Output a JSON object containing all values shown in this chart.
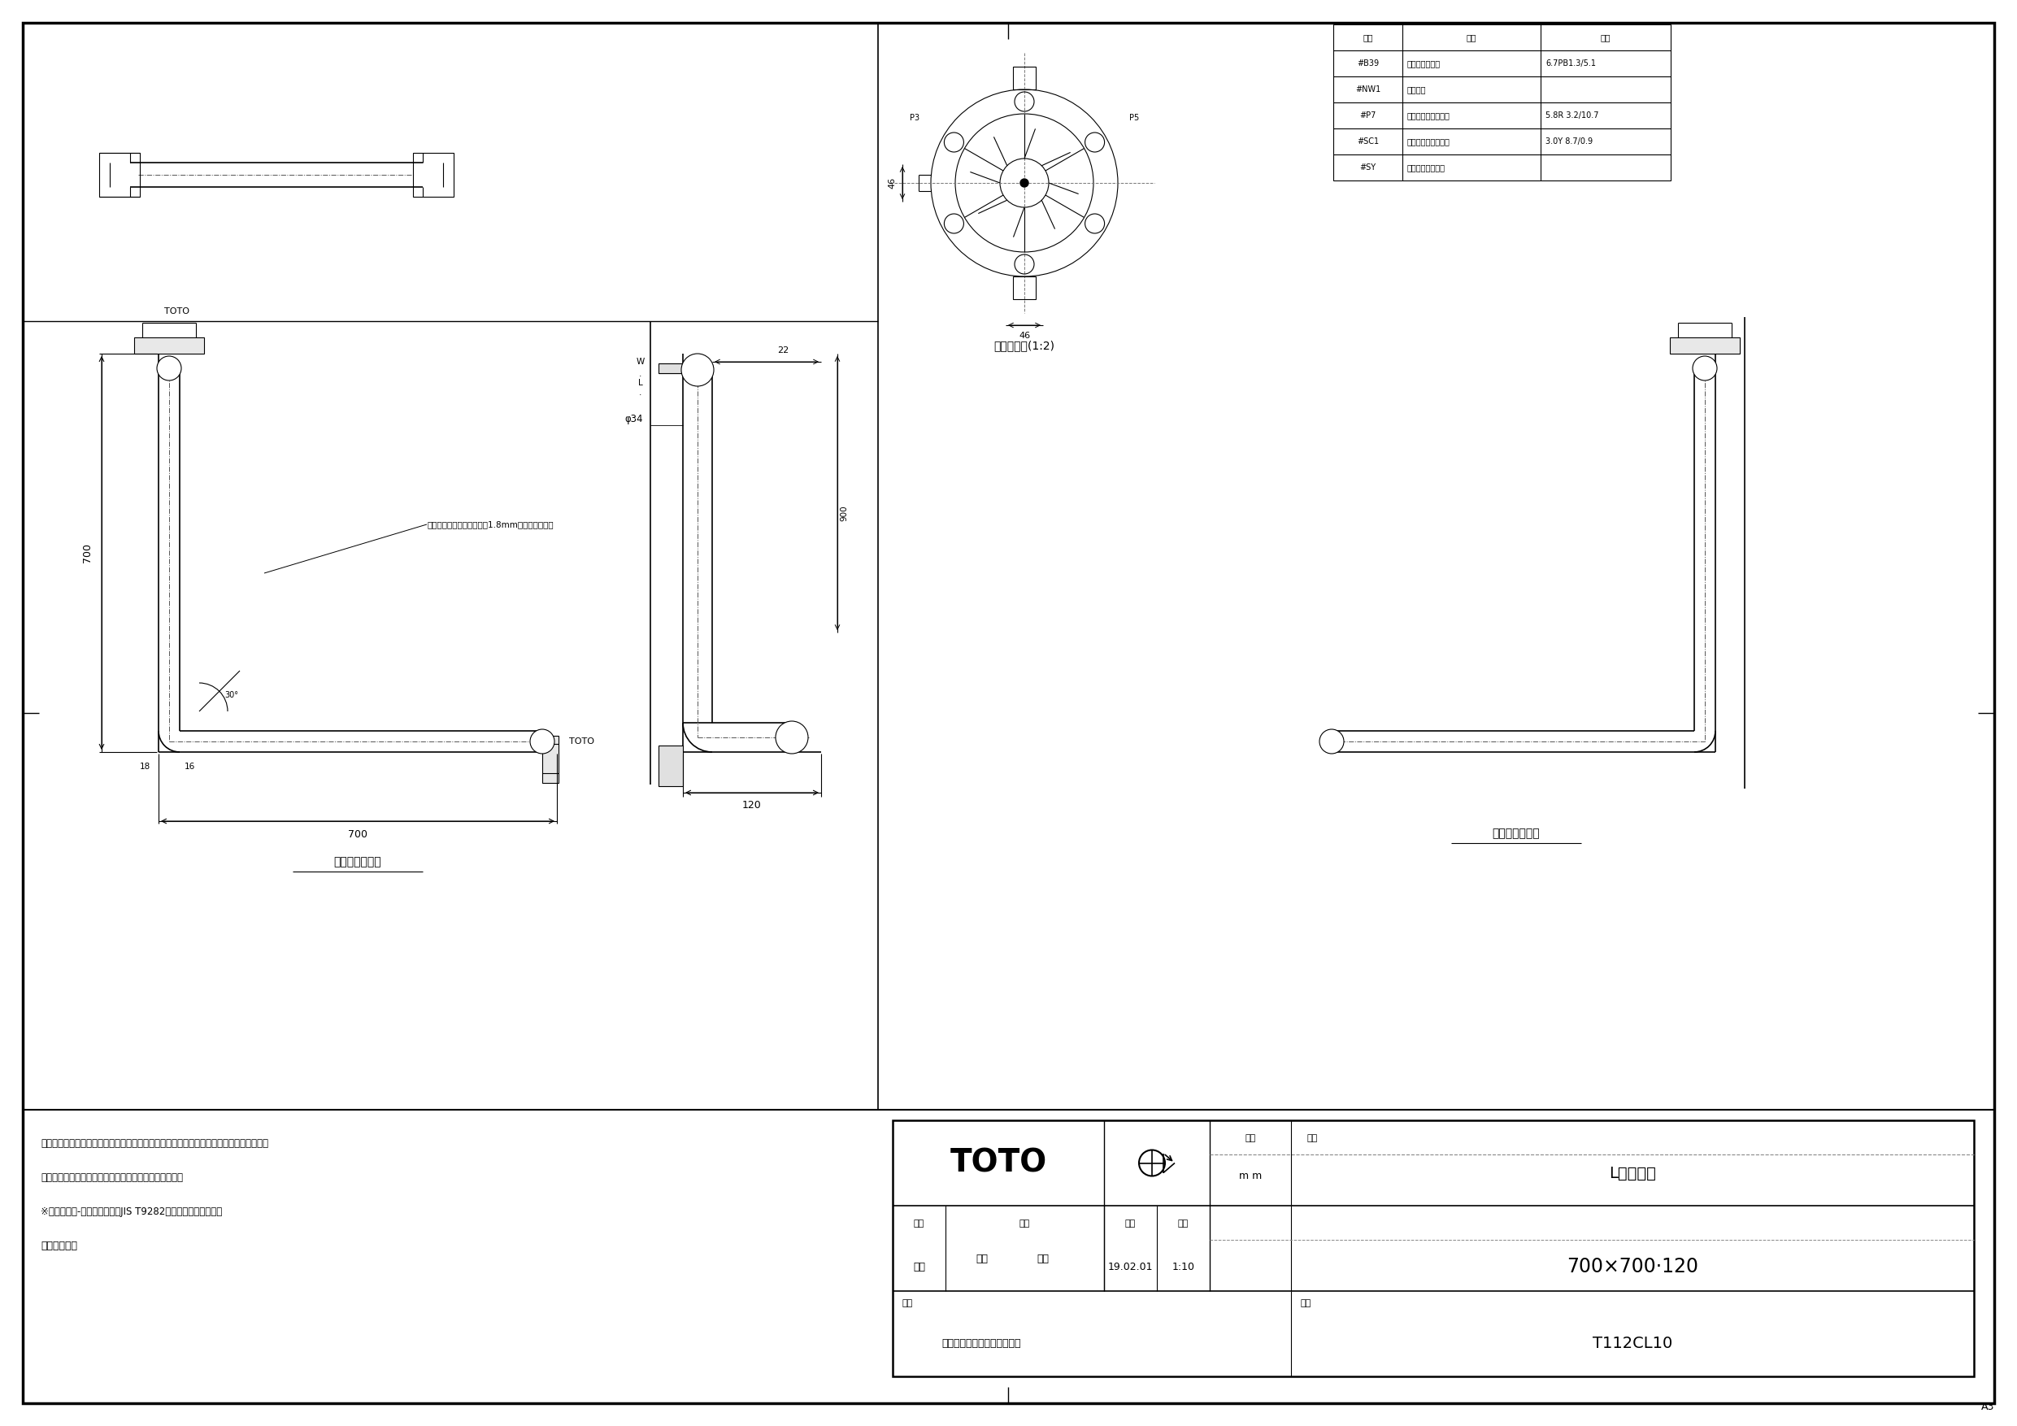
{
  "bg_color": "#ffffff",
  "border_color": "#000000",
  "line_color": "#000000",
  "page_width": 24.81,
  "page_height": 17.54,
  "title": "L型手すり",
  "drawing_number": "T112CL10",
  "scale": "1:10",
  "date": "19.02.01",
  "dimensions": "700×700·120",
  "unit": "m m",
  "maker_name": "TOTO",
  "drawn_by_label": "製図",
  "checked_by_label": "検図",
  "drawn_by": "辺邉",
  "checked_by1": "安立",
  "checked_by2": "佐藤",
  "bikou_label": "備考",
  "bikou_value": "防汚コーティング・抗菌仕様",
  "zuhan_label": "図番",
  "color_table_headers": [
    "色番",
    "色彩",
    "記号"
  ],
  "color_table_rows": [
    [
      "#B39",
      "ディープブルー",
      "6.7PB1.3/5.1"
    ],
    [
      "#NW1",
      "ホワイト",
      ""
    ],
    [
      "#P7",
      "アテンションレッド",
      "5.8R 3.2/10.7"
    ],
    [
      "#SC1",
      "パステルアイボリー",
      "3.0Y 8.7/0.9"
    ],
    [
      "#SY",
      "スマイルベージュ",
      ""
    ]
  ],
  "note_lines": [
    "手すりを取り付ける際は、施工方法にあった当社指定の固定金具を必ず使用してください",
    "材質：ステンレスの表面に軟質塗化ビニール樹脆を被覆",
    "※「福祉用具-固定形手すり（JIS T9282）」を満たしています",
    "左右勝手共通"
  ],
  "left_view_label": "左壁設置の場合",
  "right_view_label": "右壁設置の場合",
  "detail_label": "取付座詳細(1:2)",
  "annotation1": "中間支持部は遞部と比べと1.8mm偏心しています",
  "toto_label": "TOTO"
}
